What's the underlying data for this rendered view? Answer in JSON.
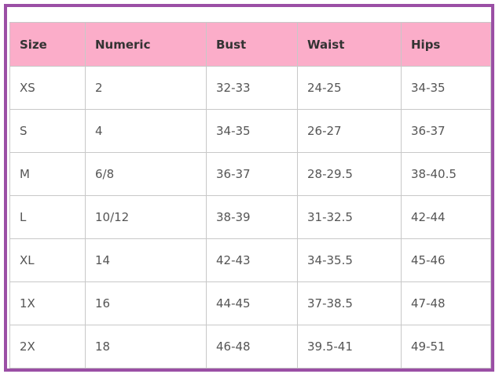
{
  "colors": {
    "header_bg": "#fbadc9",
    "frame": "#9b4fa5"
  },
  "table": {
    "headers": [
      "Size",
      "Numeric",
      "Bust",
      "Waist",
      "Hips"
    ],
    "rows": [
      [
        "XS",
        "2",
        "32-33",
        "24-25",
        "34-35"
      ],
      [
        "S",
        "4",
        "34-35",
        "26-27",
        "36-37"
      ],
      [
        "M",
        "6/8",
        "36-37",
        "28-29.5",
        "38-40.5"
      ],
      [
        "L",
        "10/12",
        "38-39",
        "31-32.5",
        "42-44"
      ],
      [
        "XL",
        "14",
        "42-43",
        "34-35.5",
        "45-46"
      ],
      [
        "1X",
        "16",
        "44-45",
        "37-38.5",
        "47-48"
      ],
      [
        "2X",
        "18",
        "46-48",
        "39.5-41",
        "49-51"
      ]
    ]
  }
}
